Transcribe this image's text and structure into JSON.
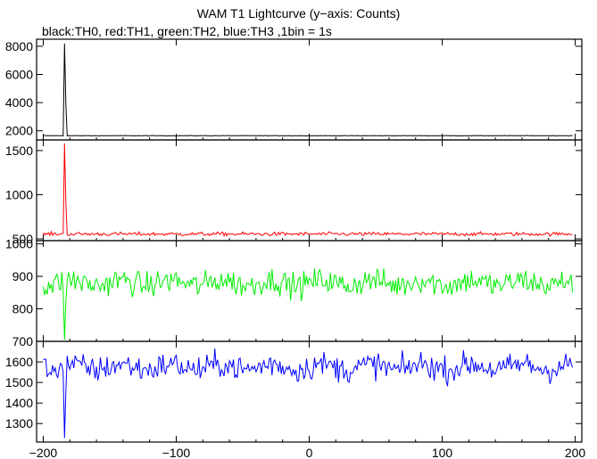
{
  "title": "WAM T1 Lightcurve (y−axis: Counts)",
  "subtitle": "black:TH0, red:TH1, green:TH2, blue:TH3 ,1bin = 1s",
  "chart_data": {
    "type": "line",
    "x_range": [
      -205,
      205
    ],
    "x_ticks": [
      -200,
      -100,
      0,
      100,
      200
    ],
    "x_tick_labels": [
      "−200",
      "−100",
      "0",
      "100",
      "200"
    ],
    "burst_x": -184,
    "panels": [
      {
        "name": "TH0",
        "color": "#000000",
        "ylim": [
          1350,
          8500
        ],
        "yticks": [
          2000,
          4000,
          6000,
          8000
        ],
        "baseline": 1650,
        "noise": 15,
        "peak": 8200
      },
      {
        "name": "TH1",
        "color": "#ff0000",
        "ylim": [
          480,
          1620
        ],
        "yticks": [
          500,
          1000,
          1500
        ],
        "baseline": 555,
        "noise": 15,
        "peak": 1580
      },
      {
        "name": "TH2",
        "color": "#00ee00",
        "ylim": [
          700,
          1010
        ],
        "yticks": [
          700,
          800,
          900,
          1000
        ],
        "baseline": 880,
        "noise": 28,
        "peak": 705
      },
      {
        "name": "TH3",
        "color": "#0000ff",
        "ylim": [
          1210,
          1700
        ],
        "yticks": [
          1300,
          1400,
          1500,
          1600
        ],
        "baseline": 1575,
        "noise": 45,
        "peak": 1230
      }
    ]
  }
}
